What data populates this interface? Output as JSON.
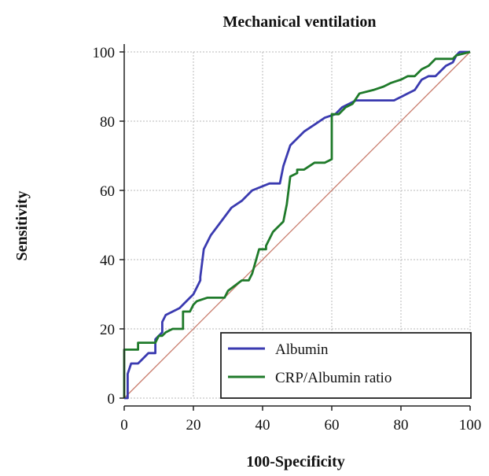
{
  "chart_data": {
    "type": "line",
    "title": "Mechanical ventilation",
    "xlabel": "100-Specificity",
    "ylabel": "Sensitivity",
    "xlim": [
      0,
      100
    ],
    "ylim": [
      0,
      100
    ],
    "xticks": [
      0,
      20,
      40,
      60,
      80,
      100
    ],
    "yticks": [
      0,
      20,
      40,
      60,
      80,
      100
    ],
    "grid": true,
    "legend_position": "bottom-right",
    "reference_line": {
      "x": [
        0,
        100
      ],
      "y": [
        0,
        100
      ],
      "color": "#c87a6a"
    },
    "series": [
      {
        "name": "Albumin",
        "color": "#3a3ab0",
        "x": [
          0,
          1,
          1,
          2,
          4,
          5,
          7,
          9,
          9,
          11,
          11,
          12,
          14,
          16,
          18,
          20,
          22,
          22,
          23,
          25,
          28,
          31,
          34,
          37,
          42,
          45,
          46,
          48,
          50,
          52,
          55,
          58,
          61,
          63,
          65,
          67,
          70,
          74,
          78,
          80,
          82,
          84,
          86,
          88,
          90,
          93,
          95,
          96,
          97,
          98,
          100
        ],
        "y": [
          0,
          0,
          7,
          10,
          10,
          11,
          13,
          13,
          17,
          19,
          22,
          24,
          25,
          26,
          28,
          30,
          34,
          35,
          43,
          47,
          51,
          55,
          57,
          60,
          62,
          62,
          67,
          73,
          75,
          77,
          79,
          81,
          82,
          84,
          85,
          86,
          86,
          86,
          86,
          87,
          88,
          89,
          92,
          93,
          93,
          96,
          97,
          99,
          100,
          100,
          100
        ]
      },
      {
        "name": "CRP/Albumin ratio",
        "color": "#1f7a2a",
        "x": [
          0,
          0,
          4,
          4,
          9,
          10,
          11,
          12,
          14,
          17,
          17,
          19,
          20,
          21,
          24,
          29,
          30,
          34,
          36,
          37,
          39,
          41,
          41,
          43,
          45,
          46,
          47,
          48,
          50,
          50,
          52,
          55,
          58,
          60,
          60,
          62,
          64,
          66,
          68,
          72,
          75,
          77,
          80,
          82,
          84,
          86,
          88,
          90,
          95,
          96,
          100
        ],
        "y": [
          0,
          14,
          14,
          16,
          16,
          18,
          18,
          19,
          20,
          20,
          25,
          25,
          27,
          28,
          29,
          29,
          31,
          34,
          34,
          36,
          43,
          43,
          44,
          48,
          50,
          51,
          56,
          64,
          65,
          66,
          66,
          68,
          68,
          69,
          82,
          82,
          84,
          85,
          88,
          89,
          90,
          91,
          92,
          93,
          93,
          95,
          96,
          98,
          98,
          99,
          100
        ]
      }
    ]
  }
}
